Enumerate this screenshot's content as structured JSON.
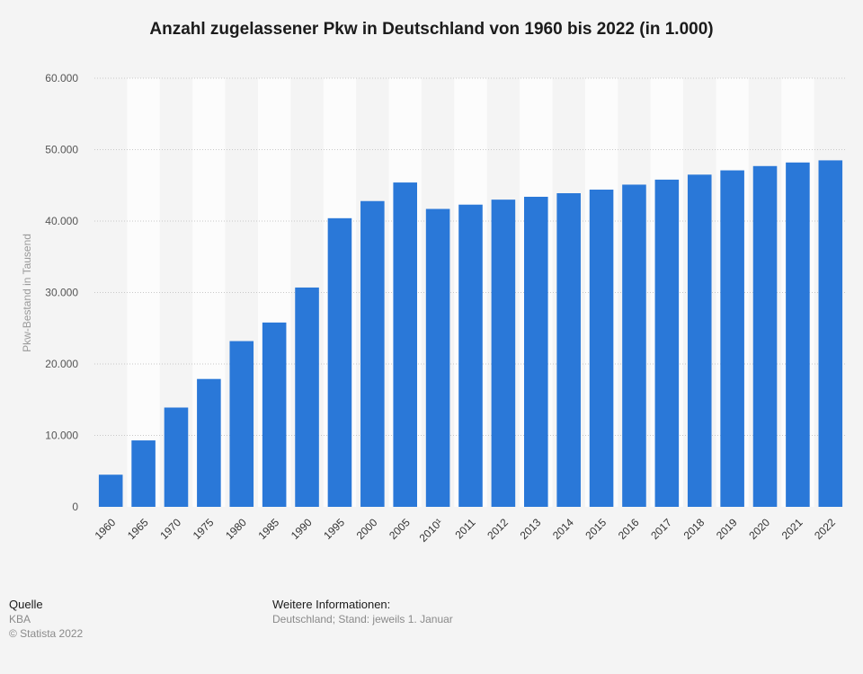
{
  "chart_data": {
    "type": "bar",
    "title": "Anzahl zugelassener Pkw in Deutschland von 1960 bis 2022 (in 1.000)",
    "ylabel": "Pkw-Bestand in Tausend",
    "xlabel": "",
    "ylim": [
      0,
      60000
    ],
    "yticks": [
      "0",
      "10.000",
      "20.000",
      "30.000",
      "40.000",
      "50.000",
      "60.000"
    ],
    "ytick_values": [
      0,
      10000,
      20000,
      30000,
      40000,
      50000,
      60000
    ],
    "grid": true,
    "bar_color": "#2a78d8",
    "categories": [
      "1960",
      "1965",
      "1970",
      "1975",
      "1980",
      "1985",
      "1990",
      "1995",
      "2000",
      "2005",
      "2010¹",
      "2011",
      "2012",
      "2013",
      "2014",
      "2015",
      "2016",
      "2017",
      "2018",
      "2019",
      "2020",
      "2021",
      "2022"
    ],
    "values": [
      4500,
      9300,
      13900,
      17900,
      23200,
      25800,
      30700,
      40400,
      42800,
      45400,
      41700,
      42300,
      43000,
      43400,
      43900,
      44400,
      45100,
      45800,
      46500,
      47100,
      47700,
      48200,
      48500
    ]
  },
  "footer": {
    "source_heading": "Quelle",
    "source_value": "KBA",
    "copyright": "© Statista 2022",
    "info_heading": "Weitere Informationen:",
    "info_value": "Deutschland; Stand: jeweils 1. Januar"
  }
}
